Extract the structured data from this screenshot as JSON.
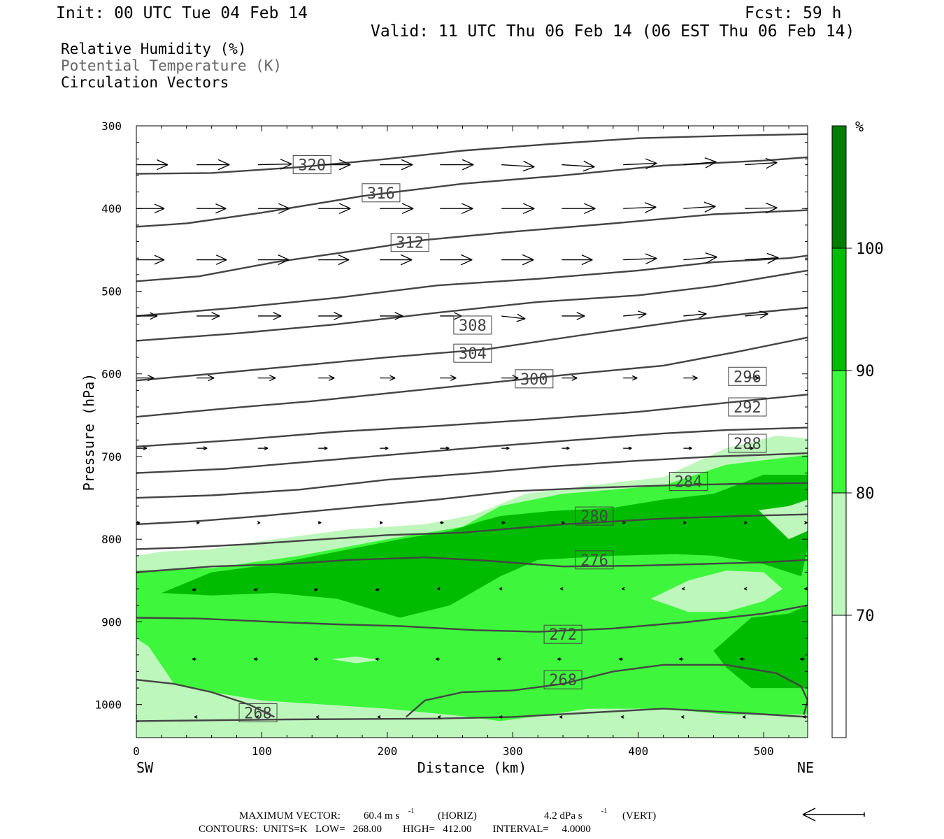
{
  "header": {
    "init": "Init: 00 UTC Tue 04 Feb 14",
    "fcst": "Fcst:   59 h",
    "valid": "Valid: 11 UTC Thu 06 Feb 14 (06 EST Thu 06 Feb 14)",
    "fields": [
      {
        "label": "Relative Humidity (%)",
        "color": "#000000"
      },
      {
        "label": "Potential Temperature (K)",
        "color": "#666666"
      },
      {
        "label": "Circulation Vectors",
        "color": "#000000"
      }
    ]
  },
  "footer": {
    "max_vector_label": "MAXIMUM VECTOR:",
    "max_horiz": "60.4 m s",
    "max_horiz_unit": "(HORIZ)",
    "max_vert": "4.2 dPa s",
    "max_vert_unit": "(VERT)",
    "exp": "-1",
    "contours": "CONTOURS:  UNITS=K   LOW=   268.00        HIGH=   412.00        INTERVAL=     4.0000"
  },
  "chart_data": {
    "type": "cross-section",
    "xlabel": "Distance (km)",
    "ylabel": "Pressure (hPa)",
    "xlim": [
      0,
      535
    ],
    "ylim": [
      1040,
      300
    ],
    "x_ticks": [
      0,
      100,
      200,
      300,
      400,
      500
    ],
    "y_ticks": [
      300,
      400,
      500,
      600,
      700,
      800,
      900,
      1000
    ],
    "left_end_label": "SW",
    "right_end_label": "NE",
    "colorbar": {
      "unit": "%",
      "levels": [
        70,
        80,
        90,
        100
      ],
      "colors": [
        "#ffffff",
        "#bef7bc",
        "#3ef73c",
        "#00bc00",
        "#007e00"
      ]
    },
    "rh_regions": [
      {
        "level": 70,
        "color": "#bef7bc",
        "x": [
          0,
          20,
          60,
          110,
          170,
          230,
          270,
          310,
          360,
          420,
          470,
          510,
          535,
          535,
          360,
          230,
          130,
          50,
          0
        ],
        "p": [
          820,
          815,
          812,
          800,
          788,
          782,
          770,
          745,
          735,
          725,
          690,
          675,
          678,
          1040,
          1040,
          1040,
          1040,
          1040,
          1040
        ]
      },
      {
        "level": 80,
        "color": "#3ef73c",
        "x": [
          0,
          60,
          130,
          200,
          260,
          290,
          340,
          420,
          470,
          535,
          535,
          470,
          420,
          360,
          330,
          290,
          260,
          200,
          150,
          100,
          60,
          30,
          10,
          0
        ],
        "p": [
          838,
          835,
          820,
          800,
          785,
          760,
          745,
          735,
          710,
          698,
          1012,
          1012,
          1005,
          1005,
          1012,
          1020,
          1014,
          1005,
          1000,
          995,
          985,
          975,
          930,
          920
        ]
      },
      {
        "level": 90,
        "color": "#00bc00",
        "x": [
          20,
          60,
          110,
          160,
          210,
          250,
          275,
          290,
          330,
          380,
          420,
          460,
          500,
          535,
          535,
          530,
          500,
          480,
          460,
          430,
          380,
          320,
          290,
          250,
          210,
          160,
          110,
          60,
          20
        ],
        "p": [
          865,
          840,
          830,
          815,
          800,
          790,
          778,
          772,
          766,
          762,
          752,
          745,
          722,
          722,
          810,
          845,
          830,
          825,
          820,
          818,
          820,
          825,
          845,
          880,
          895,
          872,
          865,
          868,
          865
        ]
      },
      {
        "level": 90,
        "color": "#00bc00",
        "x": [
          460,
          490,
          520,
          535,
          535,
          490,
          470,
          460
        ],
        "p": [
          935,
          895,
          890,
          880,
          980,
          980,
          955,
          935
        ]
      }
    ],
    "rh_holes": [
      {
        "color": "#bef7bc",
        "x": [
          410,
          440,
          470,
          500,
          515,
          500,
          470,
          440,
          410
        ],
        "p": [
          872,
          850,
          838,
          840,
          860,
          875,
          888,
          888,
          872
        ]
      },
      {
        "color": "#bef7bc",
        "x": [
          496,
          520,
          535,
          535,
          520,
          496
        ],
        "p": [
          765,
          760,
          752,
          790,
          800,
          765
        ]
      },
      {
        "color": "#bef7bc",
        "x": [
          155,
          175,
          195,
          175,
          155
        ],
        "p": [
          945,
          942,
          946,
          950,
          945
        ]
      }
    ],
    "theta": [
      {
        "label": "320",
        "x": [
          0,
          60,
          130,
          200,
          260,
          330,
          400,
          470,
          535
        ],
        "p": [
          358,
          357,
          350,
          340,
          330,
          322,
          315,
          312,
          310
        ],
        "label_at": [
          140,
          347
        ]
      },
      {
        "label": "316",
        "x": [
          0,
          40,
          100,
          180,
          260,
          340,
          420,
          500,
          535
        ],
        "p": [
          422,
          418,
          405,
          385,
          370,
          360,
          348,
          342,
          338
        ],
        "label_at": [
          195,
          381
        ]
      },
      {
        "label": "312",
        "x": [
          0,
          50,
          110,
          170,
          230,
          300,
          380,
          460,
          535
        ],
        "p": [
          488,
          482,
          465,
          452,
          438,
          428,
          418,
          407,
          402
        ],
        "label_at": [
          218,
          441
        ]
      },
      {
        "label": "308",
        "x": [
          0,
          80,
          160,
          240,
          320,
          400,
          460,
          520,
          535
        ],
        "p": [
          530,
          520,
          508,
          493,
          485,
          475,
          465,
          460,
          457
        ],
        "label_at": [
          268,
          541
        ]
      },
      {
        "label": "304",
        "x": [
          0,
          80,
          160,
          240,
          320,
          400,
          460,
          535
        ],
        "p": [
          560,
          551,
          540,
          526,
          513,
          505,
          494,
          475
        ],
        "label_at": [
          268,
          575
        ]
      },
      {
        "label": "300",
        "x": [
          0,
          60,
          130,
          200,
          280,
          360,
          440,
          500,
          535
        ],
        "p": [
          608,
          600,
          590,
          580,
          570,
          552,
          535,
          525,
          520
        ],
        "label_at": [
          317,
          606
        ]
      },
      {
        "label": "296",
        "x": [
          0,
          70,
          140,
          210,
          280,
          350,
          420,
          480,
          535
        ],
        "p": [
          652,
          642,
          633,
          622,
          611,
          600,
          590,
          573,
          556
        ],
        "label_at": [
          487,
          603
        ]
      },
      {
        "label": "292",
        "x": [
          0,
          80,
          160,
          240,
          320,
          400,
          470,
          535
        ],
        "p": [
          688,
          680,
          670,
          663,
          655,
          646,
          635,
          625
        ],
        "label_at": [
          487,
          640
        ]
      },
      {
        "label": "288",
        "x": [
          0,
          70,
          140,
          210,
          280,
          350,
          420,
          470,
          535
        ],
        "p": [
          720,
          715,
          706,
          697,
          688,
          680,
          672,
          668,
          665
        ],
        "label_at": [
          487,
          684
        ]
      },
      {
        "label": "284",
        "x": [
          0,
          60,
          130,
          200,
          270,
          330,
          400,
          460,
          500,
          535
        ],
        "p": [
          750,
          747,
          740,
          728,
          720,
          712,
          705,
          700,
          698,
          696
        ],
        "label_at": [
          440,
          730
        ]
      },
      {
        "label": "280",
        "x": [
          0,
          50,
          100,
          170,
          240,
          300,
          360,
          420,
          480,
          535
        ],
        "p": [
          782,
          778,
          772,
          762,
          752,
          742,
          738,
          735,
          733,
          732
        ],
        "label_at": [
          365,
          772
        ]
      },
      {
        "label": "276",
        "x": [
          0,
          40,
          90,
          150,
          200,
          260,
          300,
          340,
          420,
          480,
          535
        ],
        "p": [
          812,
          810,
          806,
          800,
          795,
          792,
          787,
          782,
          775,
          772,
          770
        ],
        "label_at": [
          365,
          825
        ]
      },
      {
        "label": "272",
        "x": [
          0,
          60,
          120,
          170,
          230,
          280,
          340,
          400,
          450,
          500,
          535
        ],
        "p": [
          840,
          833,
          830,
          825,
          822,
          826,
          833,
          832,
          830,
          828,
          825
        ],
        "label_at": [
          340,
          915
        ]
      },
      {
        "label": "268",
        "x": [
          0,
          50,
          110,
          160,
          210,
          270,
          320,
          380,
          440,
          500,
          535
        ],
        "p": [
          895,
          896,
          900,
          903,
          905,
          910,
          912,
          908,
          900,
          890,
          880
        ],
        "label_at": [
          340,
          970
        ]
      },
      {
        "label": "268",
        "x": [
          0,
          30,
          60,
          90,
          110
        ],
        "p": [
          970,
          975,
          985,
          1000,
          1015
        ],
        "label_at": [
          97,
          1010
        ]
      },
      {
        "label": "",
        "x": [
          215,
          230,
          260,
          300,
          340,
          380,
          420,
          470,
          510,
          530,
          535,
          532
        ],
        "p": [
          1015,
          995,
          985,
          983,
          975,
          960,
          952,
          952,
          962,
          978,
          995,
          1012
        ],
        "label_at": null
      },
      {
        "label": "",
        "x": [
          0,
          120,
          240,
          300,
          360,
          420,
          480,
          535
        ],
        "p": [
          1020,
          1018,
          1017,
          1015,
          1010,
          1005,
          1010,
          1015
        ],
        "label_at": null
      }
    ],
    "vectors": {
      "rows": [
        {
          "p": 347,
          "x": [
            0,
            48,
            97,
            145,
            194,
            242,
            291,
            339,
            388,
            436,
            485,
            533
          ],
          "dx": [
            45,
            47,
            48,
            46,
            47,
            48,
            47,
            47,
            48,
            47,
            46,
            45
          ],
          "dp": [
            0,
            0,
            -1,
            0,
            0,
            0,
            3,
            3,
            -2,
            -4,
            -3,
            -1
          ]
        },
        {
          "p": 400,
          "x": [
            0,
            48,
            97,
            145,
            194,
            242,
            291,
            339,
            388,
            436,
            485,
            533
          ],
          "dx": [
            40,
            42,
            45,
            46,
            48,
            47,
            47,
            48,
            47,
            46,
            46,
            46
          ],
          "dp": [
            0,
            0,
            0,
            0,
            0,
            0,
            0,
            0,
            -2,
            -3,
            -1,
            0
          ]
        },
        {
          "p": 462,
          "x": [
            0,
            48,
            97,
            145,
            194,
            242,
            291,
            339,
            388,
            436,
            485,
            533
          ],
          "dx": [
            40,
            43,
            44,
            44,
            46,
            46,
            46,
            44,
            48,
            48,
            48,
            45
          ],
          "dp": [
            0,
            0,
            0,
            0,
            0,
            0,
            0,
            0,
            -2,
            -4,
            -3,
            0
          ]
        },
        {
          "p": 530,
          "x": [
            0,
            48,
            97,
            145,
            194,
            242,
            291,
            339,
            388,
            436,
            485,
            533
          ],
          "dx": [
            30,
            33,
            33,
            34,
            33,
            31,
            34,
            33,
            33,
            33,
            33,
            33
          ],
          "dp": [
            0,
            0,
            0,
            0,
            0,
            0,
            4,
            0,
            -3,
            -3,
            -3,
            0
          ]
        },
        {
          "p": 605,
          "x": [
            0,
            48,
            97,
            145,
            194,
            242,
            291,
            339,
            388,
            436,
            485,
            533
          ],
          "dx": [
            25,
            25,
            25,
            23,
            22,
            23,
            24,
            22,
            20,
            20,
            20,
            20
          ],
          "dp": [
            0,
            0,
            0,
            0,
            0,
            0,
            0,
            0,
            0,
            0,
            0,
            0
          ]
        },
        {
          "p": 690,
          "x": [
            0,
            48,
            97,
            145,
            194,
            242,
            291,
            339,
            388,
            436,
            485,
            533
          ],
          "dx": [
            15,
            15,
            14,
            13,
            12,
            13,
            11,
            11,
            12,
            12,
            12,
            12
          ],
          "dp": [
            0,
            0,
            0,
            0,
            0,
            0,
            0,
            0,
            0,
            0,
            0,
            0
          ]
        },
        {
          "p": 780,
          "x": [
            0,
            48,
            97,
            145,
            194,
            242,
            291,
            339,
            388,
            436,
            485,
            533
          ],
          "dx": [
            5,
            4,
            3,
            4,
            4,
            5,
            5,
            4,
            3,
            4,
            3,
            3
          ],
          "dp": [
            0,
            0,
            0,
            0,
            0,
            0,
            0,
            0,
            0,
            0,
            0,
            0
          ]
        },
        {
          "p": 860,
          "x": [
            0,
            48,
            97,
            145,
            194,
            242,
            291,
            339,
            388,
            436,
            485,
            533
          ],
          "dx": [
            -6,
            -6,
            -6,
            -6,
            -6,
            -4,
            -3,
            -2,
            -2,
            -2,
            -1,
            -1
          ],
          "dp": [
            2,
            2,
            2,
            2,
            2,
            0,
            0,
            0,
            0,
            0,
            0,
            0
          ]
        },
        {
          "p": 945,
          "x": [
            0,
            48,
            97,
            145,
            194,
            242,
            291,
            339,
            388,
            436,
            485,
            533
          ],
          "dx": [
            -6,
            -6,
            -6,
            -6,
            -6,
            -6,
            -6,
            -6,
            -6,
            -6,
            -7,
            -7
          ],
          "dp": [
            0,
            0,
            0,
            0,
            0,
            0,
            0,
            0,
            0,
            0,
            0,
            0
          ]
        },
        {
          "p": 1015,
          "x": [
            0,
            48,
            97,
            145,
            194,
            242,
            291,
            339,
            388,
            436,
            485,
            533
          ],
          "dx": [
            -3,
            -3,
            -3,
            -3,
            -3,
            -3,
            -3,
            -3,
            -3,
            -3,
            -3,
            -3
          ],
          "dp": [
            0,
            0,
            0,
            0,
            0,
            0,
            0,
            0,
            0,
            0,
            0,
            0
          ]
        }
      ]
    }
  }
}
